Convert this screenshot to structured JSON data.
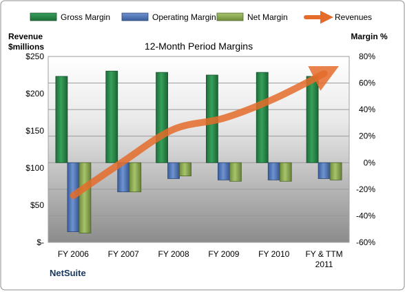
{
  "chart_data": {
    "type": "bar",
    "title": "12-Month Period Margins",
    "brand": "NetSuite",
    "categories": [
      [
        "FY 2006"
      ],
      [
        "FY 2007"
      ],
      [
        "FY 2008"
      ],
      [
        "FY 2009"
      ],
      [
        "FY 2010"
      ],
      [
        "FY & TTM",
        "2011"
      ]
    ],
    "left_axis": {
      "title_lines": [
        "Revenue",
        "$millions"
      ],
      "range": [
        0,
        250
      ],
      "ticks": [
        0,
        50,
        100,
        150,
        200,
        250
      ],
      "tick_labels": [
        "$-",
        "$50",
        "$100",
        "$150",
        "$200",
        "$250"
      ]
    },
    "right_axis": {
      "title": "Margin %",
      "range": [
        -60,
        80
      ],
      "ticks": [
        -60,
        -40,
        -20,
        0,
        20,
        40,
        60,
        80
      ],
      "tick_labels": [
        "-60%",
        "-40%",
        "-20%",
        "0%",
        "20%",
        "40%",
        "60%",
        "80%"
      ]
    },
    "series": [
      {
        "name": "Gross Margin",
        "axis": "right",
        "kind": "bar",
        "color": "#2a8a4a",
        "values": [
          65,
          69,
          68,
          66,
          68,
          65
        ]
      },
      {
        "name": "Operating Margin",
        "axis": "right",
        "kind": "bar",
        "color": "#4f74b8",
        "values": [
          -52,
          -22,
          -12,
          -13,
          -13,
          -12
        ]
      },
      {
        "name": "Net Margin",
        "axis": "right",
        "kind": "bar",
        "color": "#8aaa52",
        "values": [
          -53,
          -22,
          -10,
          -14,
          -14,
          -13
        ]
      },
      {
        "name": "Revenues",
        "axis": "left",
        "kind": "line",
        "color": "#e46c2a",
        "values": [
          63,
          109,
          152,
          167,
          193,
          227
        ]
      }
    ],
    "grid": true,
    "legend": "top"
  }
}
